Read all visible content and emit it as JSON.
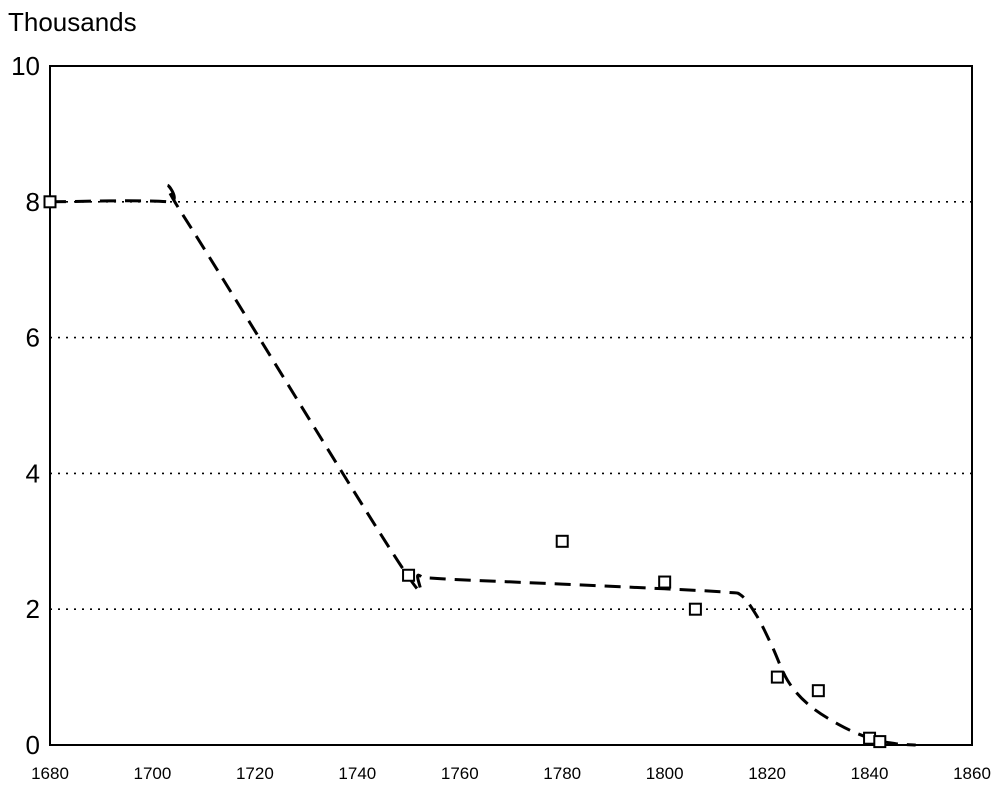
{
  "chart_data": {
    "type": "scatter",
    "title": "",
    "xlabel": "",
    "ylabel": "Thousands",
    "xlim": [
      1680,
      1860
    ],
    "ylim": [
      0,
      10
    ],
    "x_ticks": [
      "1680",
      "1700",
      "1720",
      "1740",
      "1760",
      "1780",
      "1800",
      "1820",
      "1840",
      "1860"
    ],
    "y_ticks": [
      "0",
      "2",
      "4",
      "6",
      "8",
      "10"
    ],
    "grid": "horizontal dotted at 2, 4, 6, 8",
    "legend": "none",
    "series": [
      {
        "style": "open square markers",
        "points": [
          {
            "x": 1680,
            "y": 8.0
          },
          {
            "x": 1750,
            "y": 2.5
          },
          {
            "x": 1780,
            "y": 3.0
          },
          {
            "x": 1800,
            "y": 2.4
          },
          {
            "x": 1806,
            "y": 2.0
          },
          {
            "x": 1822,
            "y": 1.0
          },
          {
            "x": 1830,
            "y": 0.8
          },
          {
            "x": 1840,
            "y": 0.1
          },
          {
            "x": 1842,
            "y": 0.05
          }
        ]
      },
      {
        "style": "dashed trend curve",
        "points": [
          {
            "x": 1680,
            "y": 8.0
          },
          {
            "x": 1703,
            "y": 8.0
          },
          {
            "x": 1706,
            "y": 7.8
          },
          {
            "x": 1748,
            "y": 2.7
          },
          {
            "x": 1752,
            "y": 2.5
          },
          {
            "x": 1756,
            "y": 2.45
          },
          {
            "x": 1780,
            "y": 2.37
          },
          {
            "x": 1800,
            "y": 2.3
          },
          {
            "x": 1812,
            "y": 2.25
          },
          {
            "x": 1815,
            "y": 2.2
          },
          {
            "x": 1818,
            "y": 1.9
          },
          {
            "x": 1821,
            "y": 1.45
          },
          {
            "x": 1824,
            "y": 0.95
          },
          {
            "x": 1828,
            "y": 0.6
          },
          {
            "x": 1834,
            "y": 0.3
          },
          {
            "x": 1840,
            "y": 0.1
          },
          {
            "x": 1845,
            "y": 0.02
          },
          {
            "x": 1849,
            "y": 0.0
          }
        ]
      }
    ]
  }
}
